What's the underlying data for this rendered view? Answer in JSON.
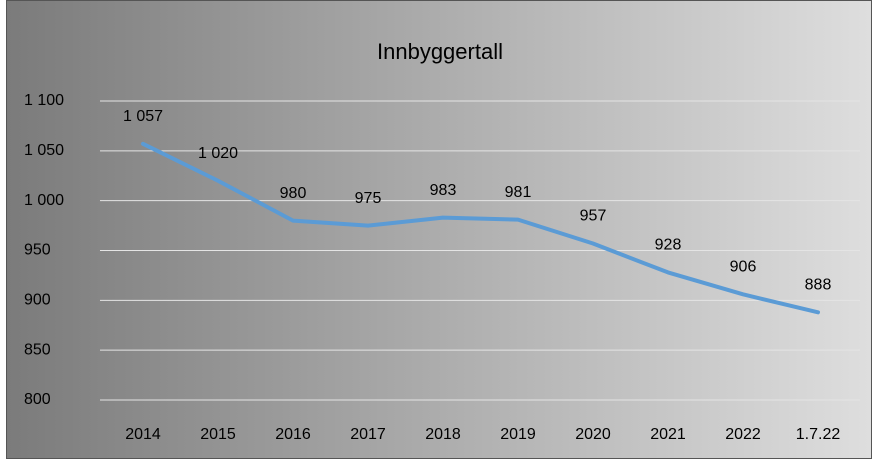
{
  "chart_data": {
    "type": "line",
    "title": "Innbyggertall",
    "categories": [
      "2014",
      "2015",
      "2016",
      "2017",
      "2018",
      "2019",
      "2020",
      "2021",
      "2022",
      "1.7.22"
    ],
    "series": [
      {
        "name": "Innbyggertall",
        "color": "#5b9bd5",
        "values": [
          1057,
          1020,
          980,
          975,
          983,
          981,
          957,
          928,
          906,
          888
        ],
        "value_labels": [
          "1 057",
          "1 020",
          "980",
          "975",
          "983",
          "981",
          "957",
          "928",
          "906",
          "888"
        ]
      }
    ],
    "ylim": [
      800,
      1100
    ],
    "yticks": [
      800,
      850,
      900,
      950,
      {
        "value": 1000,
        "label": "1 000"
      },
      {
        "value": 1050,
        "label": "1 050"
      },
      {
        "value": 1100,
        "label": "1 100"
      }
    ],
    "grid": true
  }
}
